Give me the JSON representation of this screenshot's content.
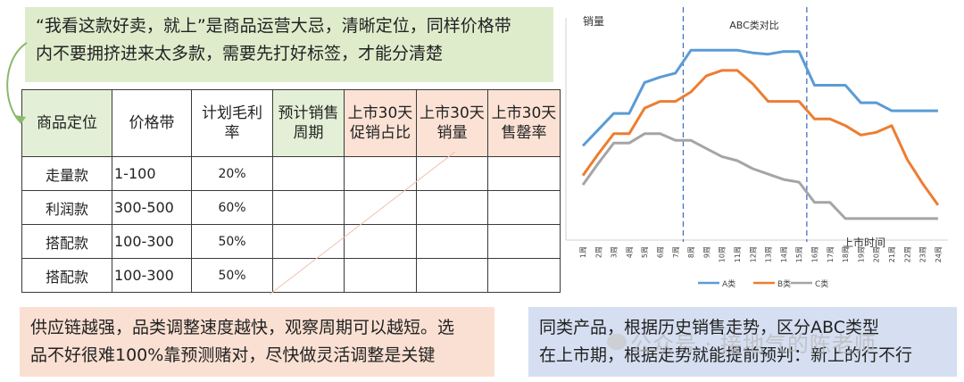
{
  "notes": {
    "top_line1": "“我看这款好卖，就上”是商品运营大忌，清晰定位，同样价格带",
    "top_line2": "内不要拥挤进来太多款，需要先打好标签，才能分清楚",
    "bottom_left_line1": "供应链越强，品类调整速度越快，观察周期可以越短。选",
    "bottom_left_line2": "品不好很难100%靠预测赌对，尽快做灵活调整是关键",
    "bottom_right_line1": "同类产品，根据历史销售走势，区分ABC类型",
    "bottom_right_line2": "在上市期，根据走势就能提前预判：新上的行不行"
  },
  "table": {
    "headers": [
      "商品定位",
      "价格带",
      "计划毛利率",
      "预计销售周期",
      "上市30天促销占比",
      "上市30天销量",
      "上市30天售罄率"
    ],
    "rows": [
      [
        "走量款",
        "1-100",
        "20%",
        "",
        "",
        "",
        ""
      ],
      [
        "利润款",
        "300-500",
        "60%",
        "",
        "",
        "",
        ""
      ],
      [
        "搭配款",
        "100-300",
        "50%",
        "",
        "",
        "",
        ""
      ],
      [
        "搭配款",
        "100-300",
        "50%",
        "",
        "",
        "",
        ""
      ]
    ]
  },
  "watermark": "公众号 · 接地气的陈老师",
  "chart_data": {
    "type": "line",
    "title": "ABC类对比",
    "ylabel": "销量",
    "xlabel": "上市时间",
    "categories": [
      "1周",
      "2周",
      "3周",
      "4周",
      "5周",
      "6周",
      "7周",
      "8周",
      "9周",
      "10周",
      "11周",
      "12周",
      "13周",
      "14周",
      "15周",
      "16周",
      "17周",
      "18周",
      "19周",
      "20周",
      "21周",
      "22周",
      "23周",
      "24周"
    ],
    "series": [
      {
        "name": "A类",
        "color": "#5b9bd5",
        "values": [
          70,
          82,
          94,
          94,
          117,
          121,
          124,
          141,
          141,
          141,
          141,
          139,
          138,
          140,
          140,
          115,
          115,
          115,
          102,
          102,
          96,
          96,
          96,
          96
        ]
      },
      {
        "name": "B类",
        "color": "#ed7d31",
        "values": [
          48,
          64,
          79,
          79,
          98,
          103,
          103,
          110,
          122,
          126,
          126,
          116,
          103,
          103,
          103,
          90,
          90,
          85,
          78,
          80,
          85,
          60,
          42,
          26
        ]
      },
      {
        "name": "C类",
        "color": "#a5a5a5",
        "values": [
          41,
          57,
          72,
          72,
          79,
          79,
          74,
          74,
          68,
          62,
          59,
          53,
          49,
          45,
          43,
          28,
          28,
          16,
          16,
          16,
          16,
          16,
          16,
          16
        ]
      }
    ],
    "ylim": [
      0,
      165
    ],
    "dividers_after_week": [
      7,
      15
    ],
    "grid": false,
    "legend": "bottom"
  }
}
